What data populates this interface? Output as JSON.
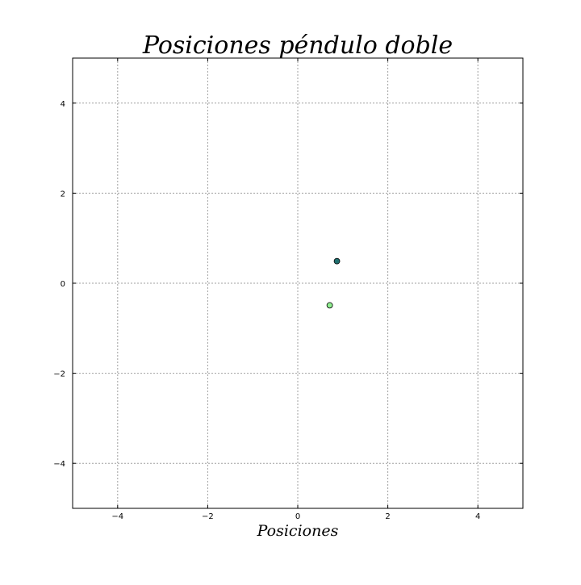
{
  "chart_data": {
    "type": "scatter",
    "title": "Posiciones péndulo doble",
    "xlabel": "Posiciones",
    "ylabel": "",
    "xlim": [
      -5,
      5
    ],
    "ylim": [
      -5,
      5
    ],
    "xticks": [
      -4,
      -2,
      0,
      2,
      4
    ],
    "yticks": [
      -4,
      -2,
      0,
      2,
      4
    ],
    "grid": true,
    "grid_style": "dotted",
    "points": [
      {
        "x": 0.87,
        "y": 0.49,
        "color": "#1f6e6e"
      },
      {
        "x": 0.71,
        "y": -0.49,
        "color": "#90ee90"
      }
    ]
  }
}
